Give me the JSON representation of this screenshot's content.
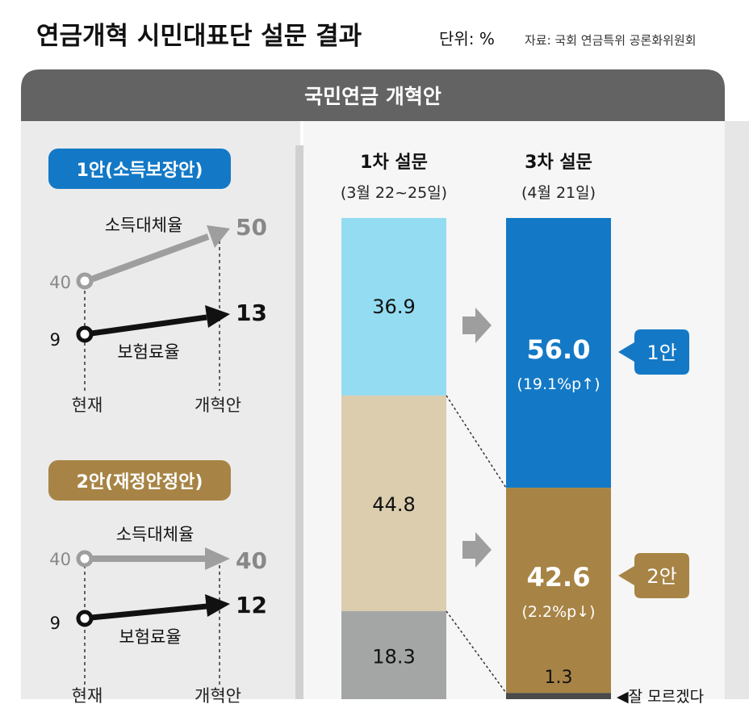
{
  "header": {
    "title": "연금개혁 시민대표단 설문 결과",
    "unit": "단위: %",
    "source": "자료: 국회 연금특위 공론화위원회"
  },
  "banner": {
    "title": "국민연금 개혁안"
  },
  "colors": {
    "banner": "#636363",
    "plan1": "#1379c6",
    "plan2": "#a78445",
    "plan1_light": "#94dcf1",
    "plan2_light": "#dbcdae",
    "unknown_light": "#a4a6a6",
    "unknown_dark": "#4a4a4a",
    "arrow_gray": "#9e9e9e",
    "panel_bg": "#ebebeb"
  },
  "plans": [
    {
      "label": "1안(소득보장안)",
      "income_label": "소득대체율",
      "premium_label": "보험료율",
      "income_now": "40",
      "income_new": "50",
      "premium_now": "9",
      "premium_new": "13",
      "x_now": "현재",
      "x_new": "개혁안"
    },
    {
      "label": "2안(재정안정안)",
      "income_label": "소득대체율",
      "premium_label": "보험료율",
      "income_now": "40",
      "income_new": "40",
      "premium_now": "9",
      "premium_new": "12",
      "x_now": "현재",
      "x_new": "개혁안"
    }
  ],
  "chart_data": {
    "type": "bar",
    "stacked": true,
    "categories": [
      "1차 설문",
      "3차 설문"
    ],
    "dates": [
      "(3월 22~25일)",
      "(4월 21일)"
    ],
    "series": [
      {
        "name": "1안",
        "values": [
          36.9,
          56.0
        ],
        "labels": [
          "36.9",
          "56.0"
        ],
        "change": "(19.1%p↑)"
      },
      {
        "name": "2안",
        "values": [
          44.8,
          42.6
        ],
        "labels": [
          "44.8",
          "42.6"
        ],
        "change": "(2.2%p↓)"
      },
      {
        "name": "잘 모르겠다",
        "values": [
          18.3,
          1.3
        ],
        "labels": [
          "18.3",
          "1.3"
        ]
      }
    ],
    "callouts": [
      "1안",
      "2안"
    ],
    "unknown_label": "◀잘 모르겠다",
    "ylim": [
      0,
      100
    ]
  }
}
